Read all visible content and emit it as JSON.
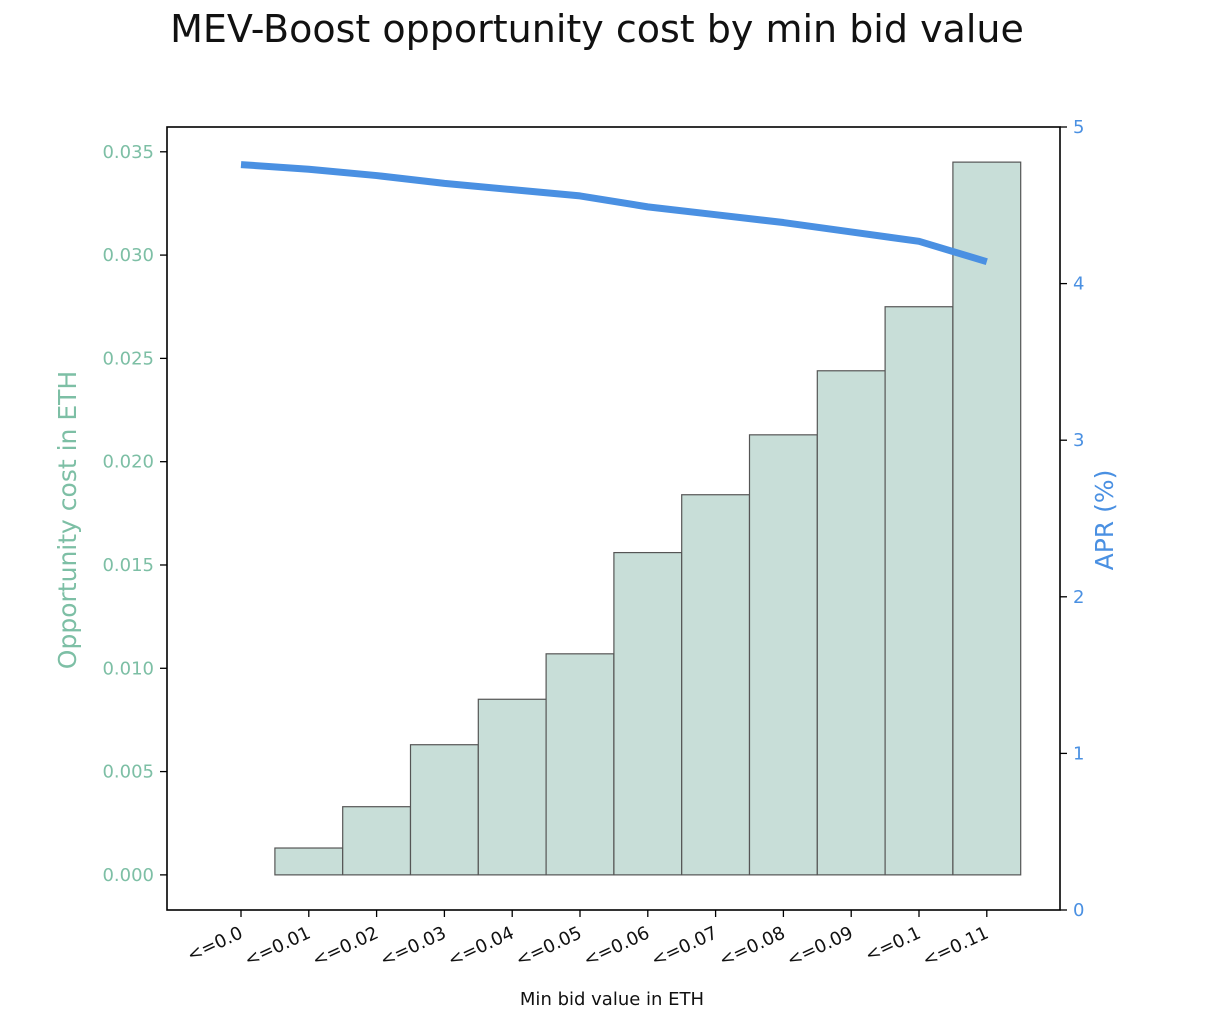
{
  "colors": {
    "bar_fill": "#c8ded8",
    "bar_stroke": "#555555",
    "left_axis_text": "#7dbfa5",
    "right_axis_text": "#4a90e2",
    "line": "#4a90e2",
    "frame": "#000000",
    "text": "#111111"
  },
  "chart_data": {
    "type": "bar",
    "title": "MEV-Boost opportunity cost by min bid value",
    "xlabel": "Min bid value in ETH",
    "ylabel": "Opportunity cost in ETH",
    "y2label": "APR (%)",
    "categories": [
      "<=0.0",
      "<=0.01",
      "<=0.02",
      "<=0.03",
      "<=0.04",
      "<=0.05",
      "<=0.06",
      "<=0.07",
      "<=0.08",
      "<=0.09",
      "<=0.1",
      "<=0.11"
    ],
    "series": [
      {
        "type": "bar",
        "axis": "left",
        "values": [
          0.0,
          0.0013,
          0.0033,
          0.0063,
          0.0085,
          0.0107,
          0.0156,
          0.0184,
          0.0213,
          0.0244,
          0.0275,
          0.0345
        ]
      },
      {
        "type": "line",
        "axis": "right",
        "values": [
          4.76,
          4.73,
          4.69,
          4.64,
          4.6,
          4.56,
          4.49,
          4.44,
          4.39,
          4.33,
          4.27,
          4.14
        ]
      }
    ],
    "ylim": [
      -0.0017,
      0.0362
    ],
    "y2lim": [
      0,
      5
    ],
    "yticks": [
      0.0,
      0.005,
      0.01,
      0.015,
      0.02,
      0.025,
      0.03,
      0.035
    ],
    "ytick_labels": [
      "0.000",
      "0.005",
      "0.010",
      "0.015",
      "0.020",
      "0.025",
      "0.030",
      "0.035"
    ],
    "y2ticks": [
      0,
      1,
      2,
      3,
      4,
      5
    ],
    "y2tick_labels": [
      "0",
      "1",
      "2",
      "3",
      "4",
      "5"
    ],
    "grid": false,
    "legend": "none"
  }
}
